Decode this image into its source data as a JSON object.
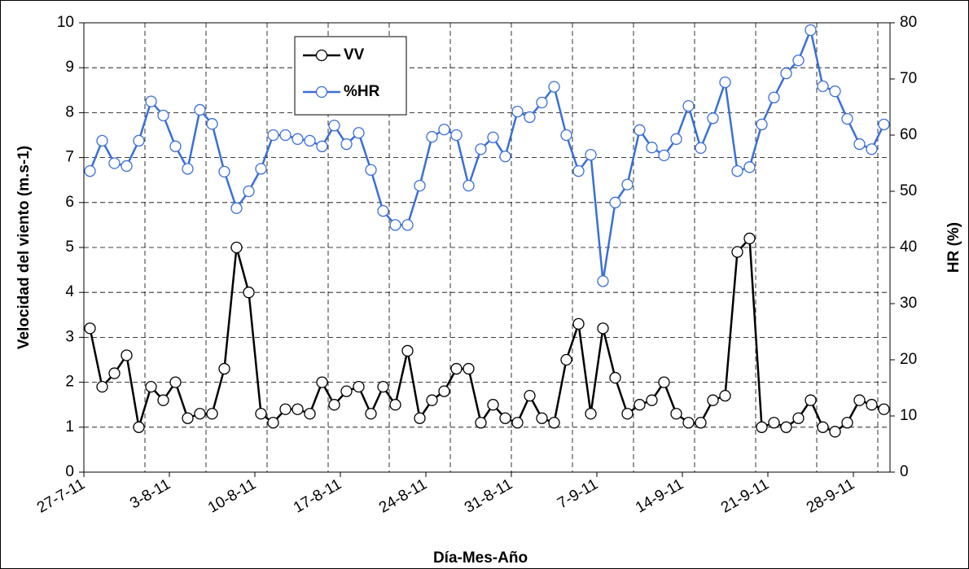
{
  "chart_data": {
    "type": "line",
    "x_label": "Día-Mes-Año",
    "y_label": "Velocidad del viento (m.s-1)",
    "y2_label": "HR (%)",
    "categories": [
      "27-7-11",
      null,
      null,
      null,
      null,
      null,
      null,
      "3-8-11",
      null,
      null,
      null,
      null,
      null,
      null,
      "10-8-11",
      null,
      null,
      null,
      null,
      null,
      null,
      "17-8-11",
      null,
      null,
      null,
      null,
      null,
      null,
      "24-8-11",
      null,
      null,
      null,
      null,
      null,
      null,
      "31-8-11",
      null,
      null,
      null,
      null,
      null,
      null,
      "7-9-11",
      null,
      null,
      null,
      null,
      null,
      null,
      "14-9-11",
      null,
      null,
      null,
      null,
      null,
      null,
      "21-9-11",
      null,
      null,
      null,
      null,
      null,
      null,
      "28-9-11",
      null,
      null
    ],
    "series": [
      {
        "name": "VV",
        "color": "#000000",
        "axis": "y",
        "values": [
          3.2,
          1.9,
          2.2,
          2.6,
          1.0,
          1.9,
          1.6,
          2.0,
          1.2,
          1.3,
          1.3,
          2.3,
          5.0,
          4.0,
          1.3,
          1.1,
          1.4,
          1.4,
          1.3,
          2.0,
          1.5,
          1.8,
          1.9,
          1.3,
          1.9,
          1.5,
          2.7,
          1.2,
          1.6,
          1.8,
          2.3,
          2.3,
          1.1,
          1.5,
          1.2,
          1.1,
          1.7,
          1.2,
          1.1,
          2.5,
          3.3,
          1.3,
          3.2,
          2.1,
          1.3,
          1.5,
          1.6,
          2.0,
          1.3,
          1.1,
          1.1,
          1.6,
          1.7,
          4.9,
          5.2,
          1.0,
          1.1,
          1.0,
          1.2,
          1.6,
          1.0,
          0.9,
          1.1,
          1.6,
          1.5,
          1.4
        ]
      },
      {
        "name": "%HR",
        "color": "#3a6fd8",
        "axis": "y2",
        "values": [
          53.6,
          59,
          55,
          54.5,
          59,
          66,
          63.5,
          58,
          54,
          64.5,
          62,
          53.5,
          47,
          50,
          54,
          60,
          60,
          59.3,
          59,
          58,
          61.7,
          58.4,
          60.4,
          53.8,
          46.5,
          44,
          44,
          51,
          59.7,
          61,
          60,
          51,
          57.5,
          59.6,
          56.2,
          64.2,
          63.2,
          65.8,
          68.6,
          60,
          53.6,
          56.5,
          34,
          48,
          51.2,
          60.9,
          57.8,
          56.4,
          59.3,
          65.2,
          57.7,
          63,
          69.4,
          53.6,
          54.3,
          61.9,
          66.7,
          71,
          73.3,
          78.7,
          68.7,
          67.8,
          62.9,
          58.4,
          57.5,
          61.9
        ]
      }
    ],
    "ylim": [
      0,
      10
    ],
    "yticks": [
      0,
      1,
      2,
      3,
      4,
      5,
      6,
      7,
      8,
      9,
      10
    ],
    "y2lim": [
      0,
      80
    ],
    "y2ticks": [
      0,
      10,
      20,
      30,
      40,
      50,
      60,
      70,
      80
    ],
    "grid": true,
    "legend": "top-left"
  }
}
